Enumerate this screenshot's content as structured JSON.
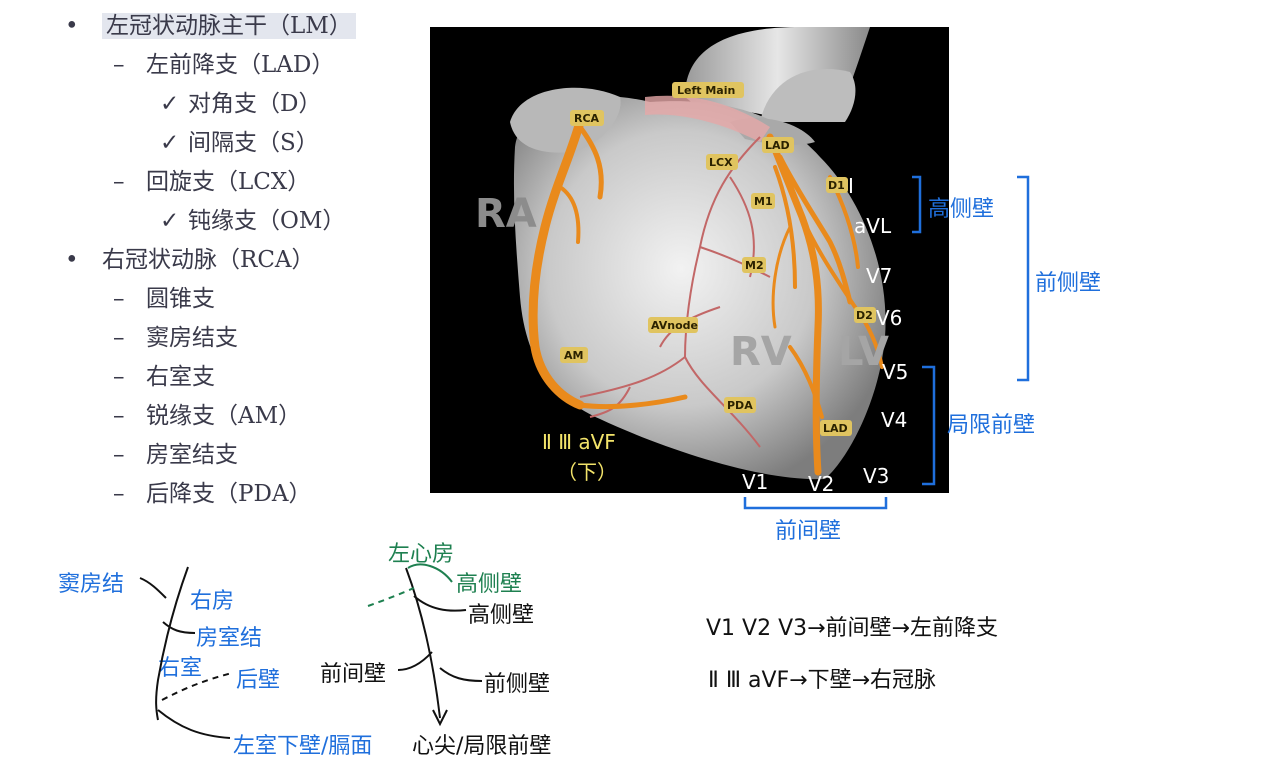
{
  "artery_list": [
    {
      "marker": "•",
      "text": "左冠状动脉主干（LM）",
      "indent": 0,
      "highlight": true
    },
    {
      "marker": "–",
      "text": "左前降支（LAD）",
      "indent": 1,
      "highlight": false
    },
    {
      "marker": "✓",
      "text": "对角支（D）",
      "indent": 2,
      "highlight": false
    },
    {
      "marker": "✓",
      "text": "间隔支（S）",
      "indent": 2,
      "highlight": false
    },
    {
      "marker": "–",
      "text": "回旋支（LCX）",
      "indent": 1,
      "highlight": false
    },
    {
      "marker": "✓",
      "text": "钝缘支（OM）",
      "indent": 2,
      "highlight": false
    },
    {
      "marker": "•",
      "text": "右冠状动脉（RCA）",
      "indent": 0,
      "highlight": false
    },
    {
      "marker": "–",
      "text": "圆锥支",
      "indent": 1,
      "highlight": false
    },
    {
      "marker": "–",
      "text": "窦房结支",
      "indent": 1,
      "highlight": false
    },
    {
      "marker": "–",
      "text": "右室支",
      "indent": 1,
      "highlight": false
    },
    {
      "marker": "–",
      "text": "锐缘支（AM）",
      "indent": 1,
      "highlight": false
    },
    {
      "marker": "–",
      "text": "房室结支",
      "indent": 1,
      "highlight": false
    },
    {
      "marker": "–",
      "text": "后降支（PDA）",
      "indent": 1,
      "highlight": false
    }
  ],
  "heart": {
    "chamber_labels": {
      "ra": "RA",
      "rv": "RV",
      "lv": "LV"
    },
    "vessel_labels": {
      "left_main": "Left Main",
      "rca": "RCA",
      "lad_top": "LAD",
      "lcx": "LCX",
      "d1": "D1",
      "m1": "M1",
      "m2": "M2",
      "av_node": "AVnode",
      "d2": "D2",
      "am": "AM",
      "pda": "PDA",
      "lad_bottom": "LAD"
    },
    "leads": {
      "i": "I",
      "avl": "aVL",
      "v7": "V7",
      "v6": "V6",
      "v5": "V5",
      "v4": "V4",
      "v3": "V3",
      "v2": "V2",
      "v1": "V1"
    },
    "inferior_leads": "Ⅱ Ⅲ aVF",
    "inferior_note": "（下）"
  },
  "wall_labels": {
    "high_lateral": "高侧壁",
    "anterolateral": "前侧壁",
    "limited_anterior": "局限前壁",
    "anteroseptal": "前间壁"
  },
  "tree_right": {
    "sa_node": "窦房结",
    "right_atrium": "右房",
    "av_node": "房室结",
    "right_ventricle": "右室",
    "posterior_wall": "后壁",
    "lv_inferior": "左室下壁/膈面"
  },
  "tree_left": {
    "left_atrium": "左心房",
    "high_lateral_green": "高侧壁",
    "high_lateral": "高侧壁",
    "anteroseptal": "前间壁",
    "anterolateral": "前侧壁",
    "apex": "心尖/局限前壁"
  },
  "equations": {
    "line1": "V1 V2 V3→前间壁→左前降支",
    "line2": "Ⅱ Ⅲ aVF→下壁→右冠脉"
  },
  "colors": {
    "blue": "#1f6fdc",
    "green": "#1e8050",
    "artery": "#e98a1c",
    "vein": "#c76a6a"
  }
}
